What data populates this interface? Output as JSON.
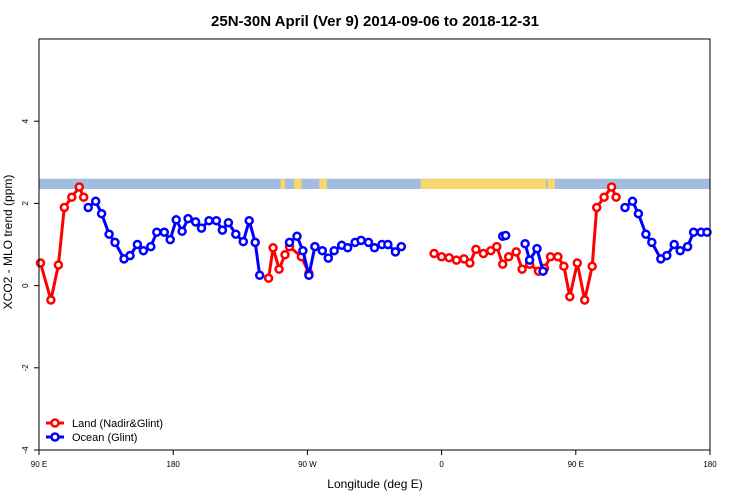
{
  "chart_data": {
    "type": "line",
    "title": "25N-30N April (Ver 9)   2014-09-06 to 2018-12-31",
    "xlabel": "Longitude (deg E)",
    "ylabel": "XCO2 - MLO trend (ppm)",
    "xlim": [
      90,
      540
    ],
    "ylim": [
      -4,
      6
    ],
    "x_ticks": [
      {
        "value": 90,
        "label": "90 E"
      },
      {
        "value": 180,
        "label": "180"
      },
      {
        "value": 270,
        "label": "90 W"
      },
      {
        "value": 360,
        "label": "0"
      },
      {
        "value": 450,
        "label": "90 E"
      },
      {
        "value": 540,
        "label": "180"
      }
    ],
    "y_ticks": [
      {
        "value": -4,
        "label": "-4"
      },
      {
        "value": -2,
        "label": "-2"
      },
      {
        "value": 0,
        "label": "0"
      },
      {
        "value": 2,
        "label": "2"
      },
      {
        "value": 4,
        "label": "4"
      }
    ],
    "land_ocean_band": {
      "y_range": [
        2.35,
        2.6
      ],
      "ocean_color": "#a3bde0",
      "land_color": "#f8d76e",
      "land_segments": [
        [
          252,
          255
        ],
        [
          261,
          266
        ],
        [
          279,
          281
        ],
        [
          278,
          283
        ],
        [
          346,
          352
        ],
        [
          352,
          430
        ],
        [
          378,
          383
        ],
        [
          413,
          416
        ],
        [
          431,
          436
        ]
      ]
    },
    "series": [
      {
        "name": "Land (Nadir&Glint)",
        "color": "#ff0000",
        "segments": [
          [
            [
              91,
              0.55
            ],
            [
              98,
              -0.35
            ],
            [
              103,
              0.5
            ],
            [
              107,
              1.9
            ],
            [
              112,
              2.15
            ],
            [
              117,
              2.4
            ],
            [
              120,
              2.15
            ]
          ],
          [
            [
              244,
              0.18
            ],
            [
              247,
              0.92
            ],
            [
              251,
              0.4
            ],
            [
              255,
              0.75
            ],
            [
              258,
              0.95
            ],
            [
              266,
              0.7
            ],
            [
              271,
              0.3
            ]
          ],
          [
            [
              355,
              0.78
            ],
            [
              360,
              0.7
            ],
            [
              365,
              0.68
            ],
            [
              370,
              0.62
            ],
            [
              375,
              0.65
            ],
            [
              379,
              0.55
            ],
            [
              383,
              0.88
            ],
            [
              388,
              0.78
            ],
            [
              393,
              0.85
            ],
            [
              397,
              0.95
            ],
            [
              401,
              0.52
            ],
            [
              405,
              0.7
            ],
            [
              410,
              0.82
            ],
            [
              414,
              0.4
            ],
            [
              419,
              0.52
            ],
            [
              425,
              0.35
            ],
            [
              429,
              0.42
            ],
            [
              433,
              0.7
            ],
            [
              438,
              0.7
            ],
            [
              442,
              0.47
            ],
            [
              446,
              -0.27
            ],
            [
              451,
              0.55
            ],
            [
              456,
              -0.35
            ],
            [
              461,
              0.47
            ],
            [
              464,
              1.9
            ],
            [
              469,
              2.15
            ],
            [
              474,
              2.4
            ],
            [
              477,
              2.15
            ]
          ]
        ]
      },
      {
        "name": "Ocean (Glint)",
        "color": "#0000ff",
        "segments": [
          [
            [
              123,
              1.9
            ],
            [
              128,
              2.05
            ],
            [
              132,
              1.75
            ],
            [
              137,
              1.25
            ],
            [
              141,
              1.05
            ],
            [
              147,
              0.65
            ],
            [
              151,
              0.73
            ],
            [
              156,
              1.0
            ],
            [
              160,
              0.85
            ],
            [
              165,
              0.95
            ],
            [
              169,
              1.3
            ],
            [
              174,
              1.3
            ],
            [
              178,
              1.12
            ],
            [
              182,
              1.6
            ],
            [
              186,
              1.32
            ],
            [
              190,
              1.63
            ],
            [
              195,
              1.55
            ],
            [
              199,
              1.4
            ],
            [
              204,
              1.58
            ],
            [
              209,
              1.58
            ],
            [
              213,
              1.35
            ],
            [
              217,
              1.53
            ],
            [
              222,
              1.25
            ],
            [
              227,
              1.07
            ],
            [
              231,
              1.58
            ],
            [
              235,
              1.05
            ],
            [
              238,
              0.25
            ]
          ],
          [
            [
              258,
              1.05
            ],
            [
              263,
              1.2
            ],
            [
              267,
              0.85
            ],
            [
              271,
              0.25
            ],
            [
              275,
              0.95
            ],
            [
              280,
              0.85
            ],
            [
              284,
              0.67
            ],
            [
              288,
              0.85
            ],
            [
              293,
              0.98
            ],
            [
              297,
              0.92
            ],
            [
              302,
              1.05
            ],
            [
              306,
              1.1
            ],
            [
              311,
              1.05
            ],
            [
              315,
              0.92
            ],
            [
              320,
              1.0
            ],
            [
              324,
              1.0
            ],
            [
              329,
              0.82
            ],
            [
              333,
              0.95
            ]
          ],
          [
            [
              401,
              1.2
            ],
            [
              403,
              1.22
            ]
          ],
          [
            [
              416,
              1.02
            ],
            [
              419,
              0.62
            ],
            [
              424,
              0.9
            ],
            [
              428,
              0.35
            ]
          ],
          [
            [
              483,
              1.9
            ],
            [
              488,
              2.05
            ],
            [
              492,
              1.75
            ],
            [
              497,
              1.25
            ],
            [
              501,
              1.05
            ],
            [
              507,
              0.65
            ],
            [
              511,
              0.73
            ],
            [
              516,
              1.0
            ],
            [
              520,
              0.85
            ],
            [
              525,
              0.95
            ],
            [
              529,
              1.3
            ],
            [
              534,
              1.3
            ],
            [
              538,
              1.3
            ]
          ]
        ]
      }
    ],
    "legend": "bottom-left"
  }
}
